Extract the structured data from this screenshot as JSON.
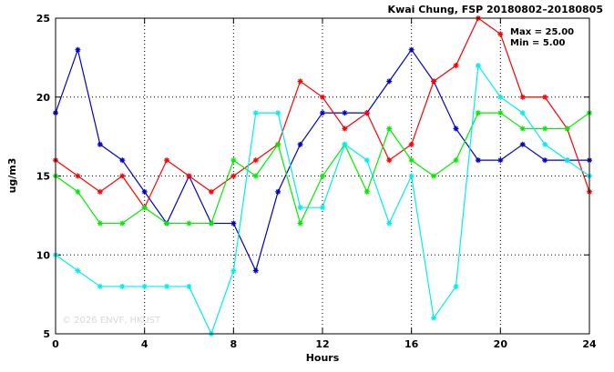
{
  "chart_data": {
    "type": "line",
    "title": "Kwai Chung, FSP 20180802–20180805",
    "xlabel": "Hours",
    "ylabel": "ug/m3",
    "xlim": [
      0,
      24
    ],
    "ylim": [
      5,
      25
    ],
    "xticks": [
      0,
      4,
      8,
      12,
      16,
      20,
      24
    ],
    "yticks": [
      5,
      10,
      15,
      20,
      25
    ],
    "grid": true,
    "max_label": "Max = 25.00",
    "min_label": "Min =  5.00",
    "watermark": "© 2026  ENVF, HKUST",
    "x": [
      0,
      1,
      2,
      3,
      4,
      5,
      6,
      7,
      8,
      9,
      10,
      11,
      12,
      13,
      14,
      15,
      16,
      17,
      18,
      19,
      20,
      21,
      22,
      23,
      24
    ],
    "series": [
      {
        "color": "#0000cc",
        "values": [
          19,
          23,
          17,
          16,
          14,
          12,
          15,
          12,
          12,
          9,
          14,
          17,
          19,
          19,
          19,
          21,
          23,
          21,
          18,
          16,
          16,
          17,
          16,
          16,
          16
        ]
      },
      {
        "color": "#ff0000",
        "values": [
          16,
          15,
          14,
          15,
          13,
          16,
          15,
          14,
          15,
          16,
          17,
          21,
          20,
          18,
          19,
          16,
          17,
          21,
          22,
          25,
          24,
          20,
          20,
          18,
          14
        ]
      },
      {
        "color": "#00ee00",
        "values": [
          15,
          14,
          12,
          12,
          13,
          12,
          12,
          12,
          16,
          15,
          17,
          12,
          15,
          17,
          14,
          18,
          16,
          15,
          16,
          19,
          19,
          18,
          18,
          18,
          19
        ]
      },
      {
        "color": "#00eeee",
        "values": [
          10,
          9,
          8,
          8,
          8,
          8,
          8,
          5,
          9,
          19,
          19,
          13,
          13,
          17,
          16,
          12,
          15,
          6,
          8,
          22,
          20,
          19,
          17,
          16,
          15
        ]
      }
    ]
  }
}
